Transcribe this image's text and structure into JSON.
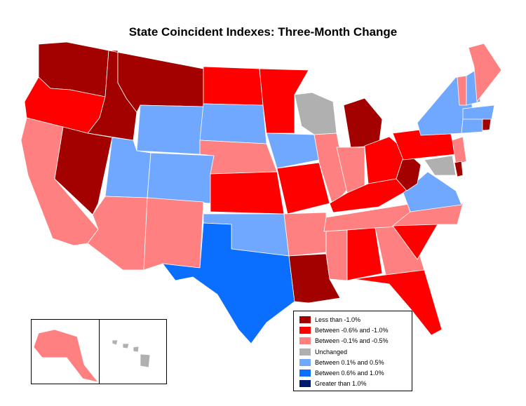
{
  "title": "State Coincident Indexes: Three-Month Change",
  "legend": [
    {
      "label": "Less than -1.0%",
      "color": "#a30000"
    },
    {
      "label": "Between -0.6% and -1.0%",
      "color": "#ff0000"
    },
    {
      "label": "Between -0.1% and -0.5%",
      "color": "#ff8080"
    },
    {
      "label": "Unchanged",
      "color": "#b0b0b0"
    },
    {
      "label": "Between 0.1% and 0.5%",
      "color": "#70a8ff"
    },
    {
      "label": "Between 0.6% and 1.0%",
      "color": "#0a6eff"
    },
    {
      "label": "Greater than 1.0%",
      "color": "#001a6b"
    }
  ],
  "state_categories": {
    "WA": 0,
    "MT": 0,
    "ID": 0,
    "NV": 0,
    "MI": 0,
    "LA": 0,
    "WV": 0,
    "DE": 0,
    "RI": 0,
    "OR": 1,
    "ND": 1,
    "MN": 1,
    "KS": 1,
    "MO": 1,
    "KY": 1,
    "OH": 1,
    "PA": 1,
    "AL": 1,
    "SC": 1,
    "FL": 1,
    "CA": 2,
    "AZ": 2,
    "NM": 2,
    "NE": 2,
    "AR": 2,
    "MS": 2,
    "IL": 2,
    "IN": 2,
    "TN": 2,
    "GA": 2,
    "NC": 2,
    "NJ": 2,
    "VT": 2,
    "ME": 2,
    "AK": 2,
    "WI": 3,
    "MD": 3,
    "HI": 3,
    "WY": 4,
    "UT": 4,
    "CO": 4,
    "SD": 4,
    "IA": 4,
    "OK": 4,
    "NY": 4,
    "VA": 4,
    "NH": 4,
    "MA": 4,
    "CT": 4,
    "TX": 5
  }
}
